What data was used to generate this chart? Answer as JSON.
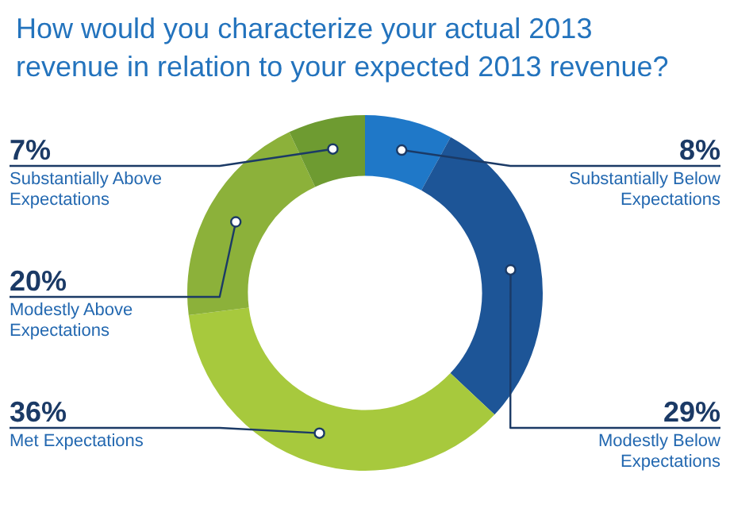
{
  "chart_data": {
    "type": "donut",
    "title": "How would you characterize your actual 2013 revenue in relation to your expected 2013 revenue?",
    "categories": [
      "Substantially Below Expectations",
      "Modestly Below Expectations",
      "Met Expectations",
      "Modestly Above Expectations",
      "Substantially Above Expectations"
    ],
    "values": [
      8,
      29,
      36,
      20,
      7
    ],
    "value_labels": [
      "8%",
      "29%",
      "36%",
      "20%",
      "7%"
    ],
    "colors": [
      "#1f78c8",
      "#1d5597",
      "#a7c93d",
      "#8cb13a",
      "#6e9b31"
    ],
    "legend": false
  }
}
